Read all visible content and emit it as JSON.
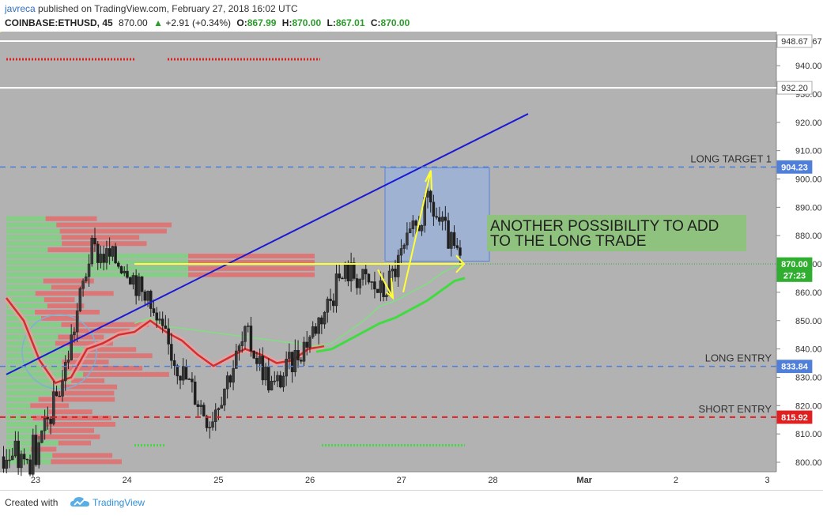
{
  "header": {
    "author": "javreca",
    "published_text": "published on TradingView.com, February 27, 2018 16:02 UTC",
    "symbol": "COINBASE:ETHUSD, 45",
    "last": "870.00",
    "change_arrow": "▲",
    "change": "+2.91 (+0.34%)",
    "o_label": "O:",
    "o_value": "867.99",
    "h_label": "H:",
    "h_value": "870.00",
    "l_label": "L:",
    "l_value": "867.01",
    "c_label": "C:",
    "c_value": "870.00"
  },
  "footer": {
    "created_with": "Created with",
    "brand": "TradingView"
  },
  "colors": {
    "plot_bg": "#b2b2b2",
    "up_candle": "#1f1f1f",
    "down_candle": "#1f1f1f",
    "trendline": "#1a1ad6",
    "horizontal_yellow": "#ffff33",
    "long_target": "#4f7fd9",
    "long_entry": "#4f7fd9",
    "short_entry": "#e02020",
    "price_label": "#2fae2f",
    "ma_red": "#d03030",
    "ma_green": "#3fdc3f",
    "annotation_bg": "#8fc27f",
    "box_fill": "#9fb2d6"
  },
  "chart_data": {
    "type": "candlestick",
    "title": "COINBASE:ETHUSD, 45",
    "x_ticks": [
      "23",
      "24",
      "25",
      "26",
      "27",
      "28",
      "Mar",
      "2",
      "3"
    ],
    "y_ticks": [
      "800.00",
      "810.00",
      "820.00",
      "830.00",
      "840.00",
      "850.00",
      "860.00",
      "870.00",
      "880.00",
      "890.00",
      "900.00",
      "910.00",
      "920.00",
      "930.00",
      "940.00",
      "948.67"
    ],
    "ylim": [
      795,
      955
    ],
    "price_labels": [
      {
        "label": "948.67",
        "value": 948.67,
        "kind": "white"
      },
      {
        "label": "932.20",
        "value": 932.2,
        "kind": "white"
      },
      {
        "label": "904.23",
        "value": 904.23,
        "kind": "blue"
      },
      {
        "label": "870.00",
        "value": 870.0,
        "kind": "green"
      },
      {
        "label": "27:23",
        "value": 866.0,
        "kind": "green"
      },
      {
        "label": "833.84",
        "value": 833.84,
        "kind": "blue"
      },
      {
        "label": "815.92",
        "value": 815.92,
        "kind": "red"
      }
    ],
    "levels": [
      {
        "name": "LONG TARGET 1",
        "value": 904.23,
        "style": "dashed-blue"
      },
      {
        "name": "LONG ENTRY",
        "value": 833.84,
        "style": "dashed-blue"
      },
      {
        "name": "SHORT ENTRY",
        "value": 815.92,
        "style": "dashed-red"
      }
    ],
    "annotation": "ANOTHER POSSIBILITY TO ADD TO THE LONG TRADE",
    "annotation_lines": [
      "ANOTHER POSSIBILITY TO ADD",
      "TO THE LONG TRADE"
    ],
    "trendline": {
      "from": {
        "day": 23.0,
        "price": 831
      },
      "to": {
        "day": 28.4,
        "price": 923
      }
    },
    "candles_close_approx": [
      {
        "day": 23.0,
        "close": 802
      },
      {
        "day": 23.3,
        "close": 830
      },
      {
        "day": 23.6,
        "close": 875
      },
      {
        "day": 24.0,
        "close": 870
      },
      {
        "day": 24.5,
        "close": 838
      },
      {
        "day": 24.9,
        "close": 815
      },
      {
        "day": 25.3,
        "close": 845
      },
      {
        "day": 25.6,
        "close": 826
      },
      {
        "day": 26.0,
        "close": 845
      },
      {
        "day": 26.4,
        "close": 868
      },
      {
        "day": 26.8,
        "close": 860
      },
      {
        "day": 27.3,
        "close": 892
      },
      {
        "day": 27.65,
        "close": 870
      }
    ]
  }
}
